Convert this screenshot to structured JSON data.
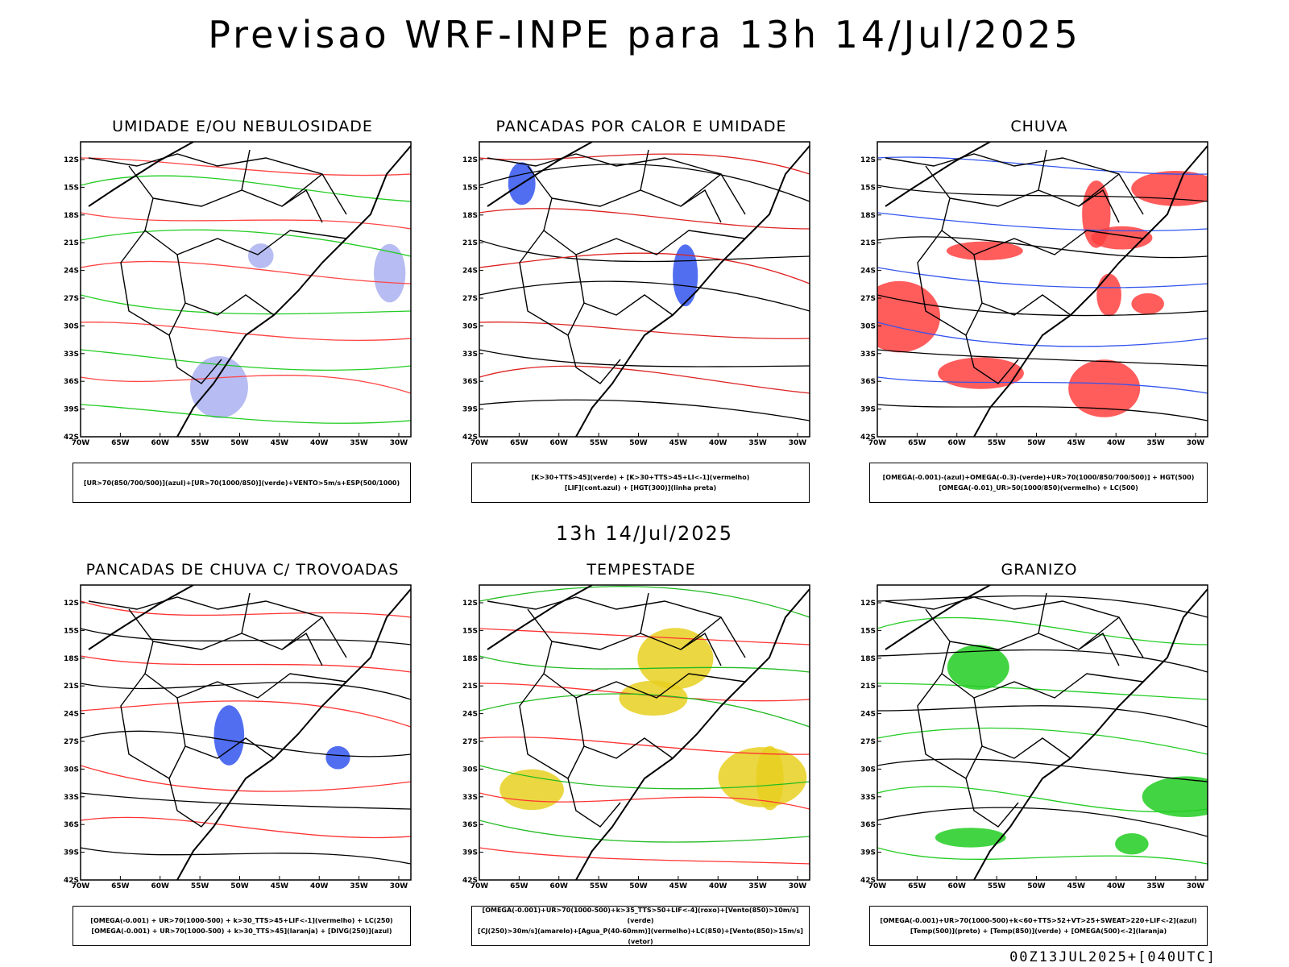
{
  "title": "Previsao WRF-INPE  para 13h 14/Jul/2025",
  "mid_title": "13h 14/Jul/2025",
  "footer": "00Z13JUL2025+[040UTC]",
  "lat_ticks": [
    "12S",
    "15S",
    "18S",
    "21S",
    "24S",
    "27S",
    "30S",
    "33S",
    "36S",
    "39S",
    "42S"
  ],
  "lon_ticks": [
    "70W",
    "65W",
    "60W",
    "55W",
    "50W",
    "45W",
    "40W",
    "35W",
    "30W"
  ],
  "panels": [
    {
      "title": "UMIDADE E/OU NEBULOSIDADE",
      "caption": [
        "[UR>70(850/700/500)](azul)+[UR>70(1000/850)](verde)+VENTO>5m/s+ESP(500/1000)"
      ],
      "colors": {
        "fill": "#aab0f0",
        "line1": "#22cc22",
        "line2": "#ff4444"
      }
    },
    {
      "title": "PANCADAS POR CALOR E UMIDADE",
      "caption": [
        "[K>30+TTS>45](verde) + [K>30+TTS>45+LI<-1](vermelho)",
        "[LIF](cont.azul) + [HGT(300)](linha preta)"
      ],
      "colors": {
        "fill": "#3355ee",
        "line1": "#000000",
        "line2": "#dd2222"
      }
    },
    {
      "title": "CHUVA",
      "caption": [
        "[OMEGA(-0.001)-(azul)+OMEGA(-0.3)-(verde)+UR>70(1000/850/700/500)] + HGT(500)",
        "[OMEGA(-0.01)_UR>50(1000/850)(vermelho) + LC(500)"
      ],
      "colors": {
        "fill": "#ff4040",
        "line1": "#000000",
        "line2": "#3355ee"
      }
    },
    {
      "title": "PANCADAS DE CHUVA C/ TROVOADAS",
      "caption": [
        "[OMEGA(-0.001) + UR>70(1000-500) + k>30_TTS>45+LIF<-1](vermelho) + LC(250)",
        "[OMEGA(-0.001) + UR>70(1000-500) + k>30_TTS>45](laranja) + [DIVG(250)](azul)"
      ],
      "colors": {
        "fill": "#3355ee",
        "line1": "#000000",
        "line2": "#ff3333"
      }
    },
    {
      "title": "TEMPESTADE",
      "caption": [
        "[OMEGA(-0.001)+UR>70(1000-500)+k>35_TTS>50+LIF<-4](roxo)+[Vento(850)>10m/s](verde)",
        "[CJ(250)>30m/s](amarelo)+[Agua_P(40-60mm)](vermelho)+LC(850)+[Vento(850)>15m/s](vetor)"
      ],
      "colors": {
        "fill": "#e8d020",
        "line1": "#ff3333",
        "line2": "#22bb22"
      }
    },
    {
      "title": "GRANIZO",
      "caption": [
        "[OMEGA(-0.001)+UR>70(1000-500)+k<60+TTS>52+VT>25+SWEAT>220+LIF<-2](azul)",
        "[Temp(500)](preto) + [Temp(850)](verde) + [OMEGA(500)<-2](laranja)"
      ],
      "colors": {
        "fill": "#22cc22",
        "line1": "#22cc22",
        "line2": "#000000"
      }
    }
  ]
}
